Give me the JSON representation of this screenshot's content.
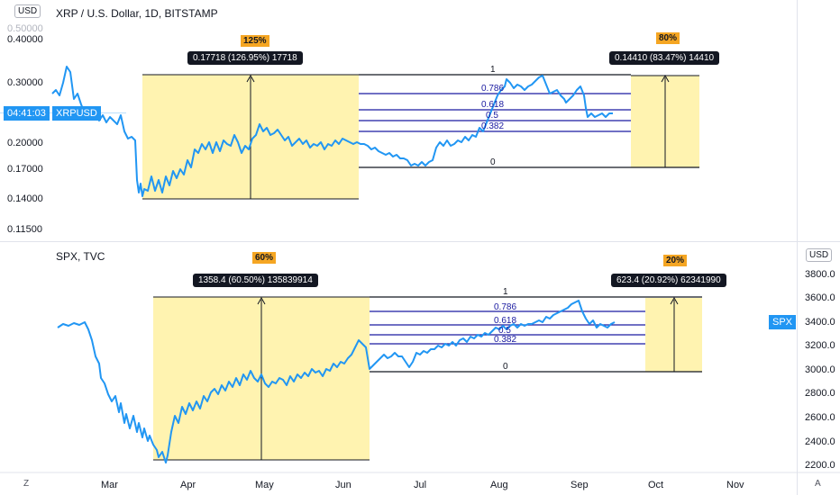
{
  "top_chart": {
    "title": "XRP / U.S. Dollar, 1D, BITSTAMP",
    "currency_unit": "USD",
    "y_ticks": [
      "0.50000",
      "0.40000",
      "0.30000",
      "0.20000",
      "0.17000",
      "0.14000",
      "0.11500"
    ],
    "price_tag_time": "04:41:03",
    "price_tag_symbol": "XRPUSD",
    "left_range": {
      "percent_badge": "125%",
      "measure_label": "0.17718 (126.95%) 17718"
    },
    "right_range": {
      "percent_badge": "80%",
      "measure_label": "0.14410 (83.47%) 14410"
    },
    "fib_levels": [
      "1",
      "0.786",
      "0.618",
      "0.5",
      "0.382",
      "0"
    ]
  },
  "bottom_chart": {
    "title": "SPX, TVC",
    "currency_unit": "USD",
    "y_ticks": [
      "3800.0",
      "3600.0",
      "3400.0",
      "3200.0",
      "3000.0",
      "2800.0",
      "2600.0",
      "2400.0",
      "2200.0"
    ],
    "price_tag_symbol": "SPX",
    "left_range": {
      "percent_badge": "60%",
      "measure_label": "1358.4 (60.50%) 135839914"
    },
    "right_range": {
      "percent_badge": "20%",
      "measure_label": "623.4 (20.92%) 62341990"
    },
    "fib_levels": [
      "1",
      "0.786",
      "0.618",
      "0.5",
      "0.382",
      "0"
    ]
  },
  "x_axis": {
    "labels": [
      "Mar",
      "Apr",
      "May",
      "Jun",
      "Jul",
      "Aug",
      "Sep",
      "Oct",
      "Nov"
    ],
    "left_corner": "Z",
    "right_corner": "A"
  },
  "colors": {
    "line": "#2196f3",
    "range_fill": "#fff3b0",
    "fib_blue": "#1a1aa0",
    "badge": "#f5a623",
    "dark_tag": "#131722"
  },
  "icons": [
    "zoom-icon",
    "auto-scale-icon"
  ]
}
